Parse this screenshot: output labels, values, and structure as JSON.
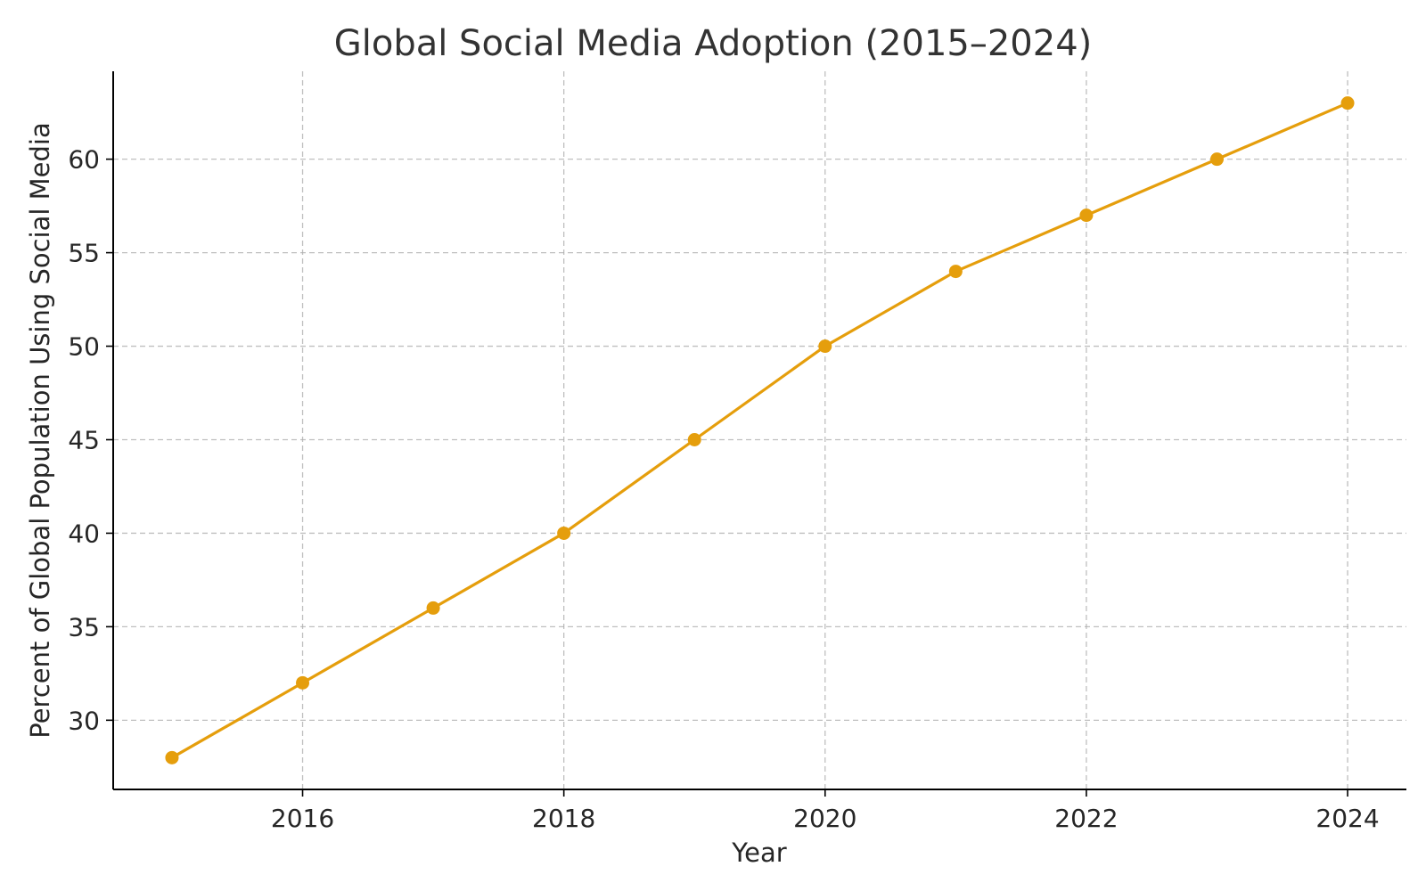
{
  "chart_data": {
    "type": "line",
    "title": "Global Social Media Adoption (2015–2024)",
    "xlabel": "Year",
    "ylabel": "Percent of Global Population Using Social Media",
    "x": [
      2015,
      2016,
      2017,
      2018,
      2019,
      2020,
      2021,
      2022,
      2023,
      2024
    ],
    "series": [
      {
        "values": [
          28,
          32,
          36,
          40,
          45,
          50,
          54,
          57,
          60,
          63
        ],
        "color": "#E59E0C",
        "marker": "circle"
      }
    ],
    "xlim": [
      2014.55,
      2024.45
    ],
    "ylim": [
      26.3,
      64.7
    ],
    "xticks": [
      2016,
      2018,
      2020,
      2022,
      2024
    ],
    "yticks": [
      30,
      35,
      40,
      45,
      50,
      55,
      60
    ],
    "grid": true,
    "legend": "none"
  }
}
